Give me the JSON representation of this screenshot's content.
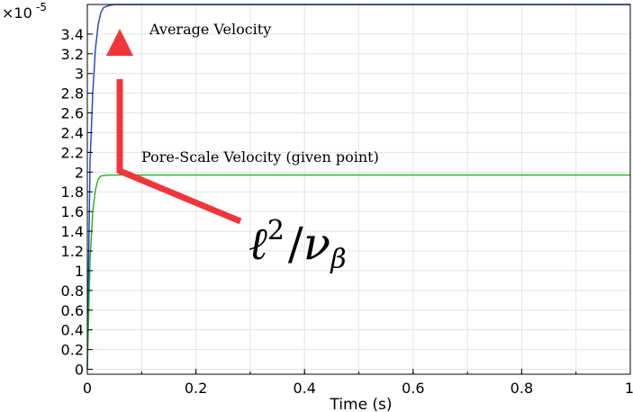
{
  "chart_data": {
    "type": "line",
    "xlabel": "Time (s)",
    "ylabel": "",
    "xlim": [
      0,
      1
    ],
    "ylim": [
      -0.05,
      3.7
    ],
    "y_exponent_label": "×10",
    "y_exponent_power": "-5",
    "x_ticks": [
      {
        "v": 0,
        "label": "0"
      },
      {
        "v": 0.2,
        "label": "0.2"
      },
      {
        "v": 0.4,
        "label": "0.4"
      },
      {
        "v": 0.6,
        "label": "0.6"
      },
      {
        "v": 0.8,
        "label": "0.8"
      },
      {
        "v": 1,
        "label": "1"
      }
    ],
    "x_minor_step": 0.1,
    "y_ticks": [
      {
        "v": 0,
        "label": "0"
      },
      {
        "v": 0.2,
        "label": "0.2"
      },
      {
        "v": 0.4,
        "label": "0.4"
      },
      {
        "v": 0.6,
        "label": "0.6"
      },
      {
        "v": 0.8,
        "label": "0.8"
      },
      {
        "v": 1,
        "label": "1"
      },
      {
        "v": 1.2,
        "label": "1.2"
      },
      {
        "v": 1.4,
        "label": "1.4"
      },
      {
        "v": 1.6,
        "label": "1.6"
      },
      {
        "v": 1.8,
        "label": "1.8"
      },
      {
        "v": 2,
        "label": "2"
      },
      {
        "v": 2.2,
        "label": "2.2"
      },
      {
        "v": 2.4,
        "label": "2.4"
      },
      {
        "v": 2.6,
        "label": "2.6"
      },
      {
        "v": 2.8,
        "label": "2.8"
      },
      {
        "v": 3,
        "label": "3"
      },
      {
        "v": 3.2,
        "label": "3.2"
      },
      {
        "v": 3.4,
        "label": "3.4"
      }
    ],
    "grid": true,
    "series": [
      {
        "color": "#1f3fd1",
        "x": [
          0,
          0.002,
          0.005,
          0.01,
          0.015,
          0.02,
          0.025,
          0.03,
          0.04,
          0.05,
          0.1,
          0.2,
          0.4,
          0.6,
          0.8,
          1.0
        ],
        "y": [
          0,
          0.9,
          2.1,
          2.8,
          3.25,
          3.5,
          3.62,
          3.67,
          3.69,
          3.7,
          3.7,
          3.7,
          3.7,
          3.7,
          3.7,
          3.7
        ]
      },
      {
        "color": "#22b022",
        "x": [
          0,
          0.002,
          0.005,
          0.01,
          0.015,
          0.02,
          0.025,
          0.03,
          0.04,
          0.05,
          0.1,
          0.2,
          0.4,
          0.6,
          0.8,
          1.0
        ],
        "y": [
          0,
          0.45,
          1.1,
          1.6,
          1.82,
          1.93,
          1.96,
          1.965,
          1.97,
          1.97,
          1.97,
          1.97,
          1.97,
          1.97,
          1.97,
          1.97
        ]
      }
    ],
    "annotations": {
      "average_velocity": "Average Velocity",
      "pore_scale_velocity": "Pore-Scale Velocity (given point)"
    },
    "formula": {
      "base": "ℓ",
      "superscript": "2",
      "slash": "/",
      "nu": "ν",
      "subscript": "β"
    },
    "arrow_color": "#f2353a"
  }
}
